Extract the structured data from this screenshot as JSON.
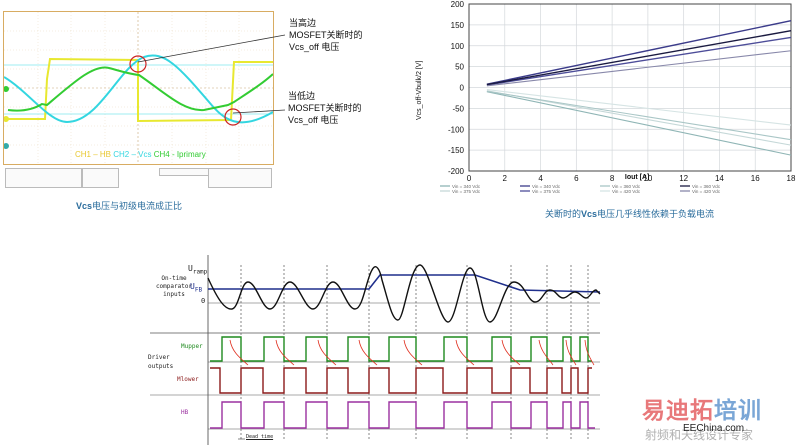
{
  "scope": {
    "caption_prefix": "Vcs",
    "caption_rest": "电压与初级电流成正比",
    "legend": [
      {
        "text": "CH1 – HB",
        "color": "#e8c830"
      },
      {
        "text": "CH2 – Vcs",
        "color": "#33d6e0"
      },
      {
        "text": "CH4 - Iprimary",
        "color": "#33cc33"
      }
    ],
    "callout_high": {
      "line1": "当高边",
      "line2": "MOSFET关断时的",
      "line3": "Vcs_off  电压"
    },
    "callout_low": {
      "line1": "当低边",
      "line2": "MOSFET关断时的",
      "line3": "Vcs_off  电压"
    },
    "colors": {
      "frame": "#d8ac62",
      "ch1": "#e8e830",
      "ch2": "#33d6e0",
      "ch4": "#33cc33",
      "marker": "#cc2222"
    }
  },
  "chart_data": {
    "type": "line",
    "title": "",
    "caption_prefix": "关断时的",
    "caption_bold": "Vcs",
    "caption_rest": "电压几乎线性依赖于负载电流",
    "xlabel": "Iout [A]",
    "ylabel": "Vcs_off-Vbulk/2 [V]",
    "xlim": [
      0,
      18
    ],
    "ylim": [
      -200,
      200
    ],
    "xticks": [
      "0",
      "2",
      "4",
      "6",
      "8",
      "10",
      "12",
      "14",
      "16",
      "18"
    ],
    "yticks": [
      "200",
      "150",
      "100",
      "50",
      "0",
      "-50",
      "-100",
      "-150",
      "-200"
    ],
    "grid": true,
    "legend_position": "bottom",
    "x": [
      1,
      18
    ],
    "series": [
      {
        "name": "Vin = 340 Vdc",
        "values": [
          -10,
          -162
        ],
        "color": "#8fb5b5"
      },
      {
        "name": "Vin = 375 Vdc",
        "values": [
          -8,
          -138
        ],
        "color": "#c5d8d8"
      },
      {
        "name": "Vin = 340 Vdc",
        "values": [
          8,
          160
        ],
        "color": "#3b3b8a"
      },
      {
        "name": "Vin = 375 Vdc",
        "values": [
          6,
          120
        ],
        "color": "#4d4d99"
      },
      {
        "name": "Vin = 360 Vdc",
        "values": [
          -9,
          -125
        ],
        "color": "#a9c6c6"
      },
      {
        "name": "Vin = 420 Vdc",
        "values": [
          -5,
          -90
        ],
        "color": "#d6e4e4"
      },
      {
        "name": "Vin = 360 Vdc",
        "values": [
          7,
          136
        ],
        "color": "#1a1a40"
      },
      {
        "name": "Vin = 420 Vdc",
        "values": [
          4,
          88
        ],
        "color": "#8888aa"
      }
    ]
  },
  "timing": {
    "group1_line1": "On-time",
    "group1_line2": "comparator",
    "group1_line3": "inputs",
    "u_ramp": "U",
    "u_ramp_sub": "ramp",
    "u_fb": "U",
    "u_fb_sub": "FB",
    "zero": "0",
    "group2_line1": "Driver",
    "group2_line2": "outputs",
    "mupper": "Mupper",
    "mlower": "Mlower",
    "hb": "HB",
    "dead_time": "Dead time",
    "colors": {
      "ramp": "#111111",
      "fb": "#1f2f8c",
      "mupper": "#1e8a1e",
      "mlower": "#8b1a1a",
      "hb": "#9b30a0",
      "arrow": "#e03020"
    }
  },
  "watermark": {
    "brand_red": "易迪拓",
    "brand_blue": "培训",
    "tagline": "射频和天线设计专家",
    "site": "EEChina.com"
  }
}
